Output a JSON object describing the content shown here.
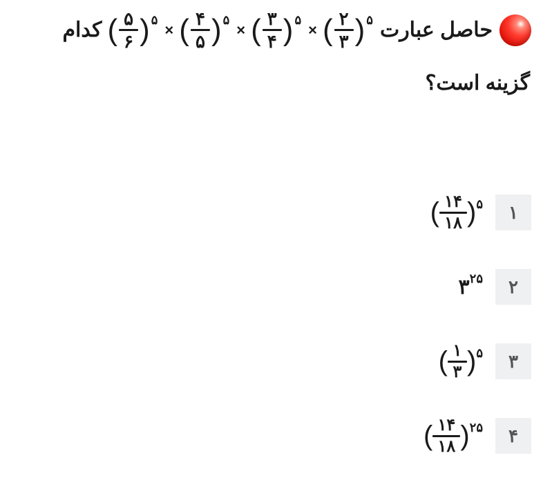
{
  "question": {
    "lead": "حاصل عبارت",
    "tail": "کدام",
    "line2": "گزینه است؟",
    "exponent": "۵",
    "times": "×",
    "terms": [
      {
        "num": "۵",
        "den": "۶"
      },
      {
        "num": "۴",
        "den": "۵"
      },
      {
        "num": "۳",
        "den": "۴"
      },
      {
        "num": "۲",
        "den": "۳"
      }
    ]
  },
  "options": {
    "1": {
      "label": "۱",
      "num": "۱۴",
      "den": "۱۸",
      "exp": "۵"
    },
    "2": {
      "label": "۲",
      "base": "۳",
      "exp": "۲۵"
    },
    "3": {
      "label": "۳",
      "num": "۱",
      "den": "۳",
      "exp": "۵"
    },
    "4": {
      "label": "۴",
      "num": "۱۴",
      "den": "۱۸",
      "exp": "۲۵"
    }
  },
  "colors": {
    "text": "#1a1a1a",
    "option_box_bg": "#eef0f2",
    "option_box_fg": "#555555",
    "bullet_gradient": [
      "#ffffff",
      "#ff8a7a",
      "#ff3b2f",
      "#e4160b",
      "#b30d05"
    ]
  }
}
